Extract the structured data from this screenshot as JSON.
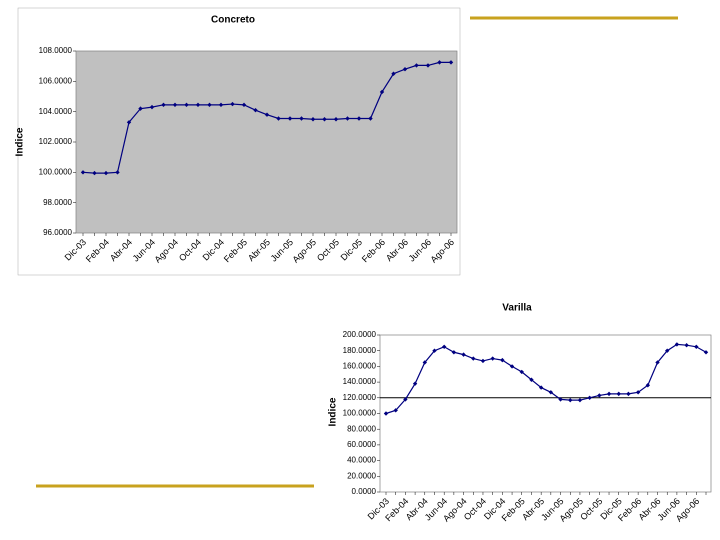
{
  "chart_data": [
    {
      "type": "line",
      "title": "Concreto",
      "y_label": "Indice",
      "categories": [
        "Dic-03",
        null,
        "Feb-04",
        null,
        "Abr-04",
        null,
        "Jun-04",
        null,
        "Ago-04",
        null,
        "Oct-04",
        null,
        "Dic-04",
        null,
        "Feb-05",
        null,
        "Abr-05",
        null,
        "Jun-05",
        null,
        "Ago-05",
        null,
        "Oct-05",
        null,
        "Dic-05",
        null,
        "Feb-06",
        null,
        "Abr-06",
        null,
        "Jun-06",
        null,
        "Ago-06"
      ],
      "series": [
        {
          "color": "#000080",
          "values": [
            100,
            99.95,
            99.95,
            100,
            103.3,
            104.2,
            104.3,
            104.45,
            104.45,
            104.45,
            104.45,
            104.45,
            104.45,
            104.5,
            104.45,
            104.1,
            103.8,
            103.55,
            103.55,
            103.55,
            103.5,
            103.5,
            103.5,
            103.55,
            103.55,
            103.55,
            105.3,
            106.5,
            106.8,
            107.05,
            107.05,
            107.25,
            107.25
          ]
        }
      ],
      "ylim": [
        96,
        108
      ],
      "yticks": [
        {
          "value": 96,
          "label": "96.0000"
        },
        {
          "value": 98,
          "label": "98.0000"
        },
        {
          "value": 100,
          "label": "100.0000"
        },
        {
          "value": 102,
          "label": "102.0000"
        },
        {
          "value": 104,
          "label": "104.0000"
        },
        {
          "value": 106,
          "label": "106.0000"
        },
        {
          "value": 108,
          "label": "108.0000"
        }
      ],
      "plot_background": "#c0c0c0"
    },
    {
      "type": "line",
      "title": "Varilla",
      "y_label": "Indice",
      "categories": [
        "Dic-03",
        null,
        "Feb-04",
        null,
        "Abr-04",
        null,
        "Jun-04",
        null,
        "Ago-04",
        null,
        "Oct-04",
        null,
        "Dic-04",
        null,
        "Feb-05",
        null,
        "Abr-05",
        null,
        "Jun-05",
        null,
        "Ago-05",
        null,
        "Oct-05",
        null,
        "Dic-05",
        null,
        "Feb-06",
        null,
        "Abr-06",
        null,
        "Jun-06",
        null,
        "Ago-06",
        null
      ],
      "series": [
        {
          "color": "#000080",
          "values": [
            100,
            104,
            118,
            138,
            165,
            180,
            185,
            178,
            175,
            170,
            167,
            170,
            168,
            160,
            153,
            143,
            133,
            127,
            118,
            117,
            117,
            120,
            123,
            125,
            125,
            125,
            127,
            136,
            165,
            180,
            188,
            187,
            185,
            178
          ]
        }
      ],
      "ylim": [
        0,
        200
      ],
      "yticks": [
        {
          "value": 0,
          "label": "0.0000"
        },
        {
          "value": 20,
          "label": "20.0000"
        },
        {
          "value": 40,
          "label": "40.0000"
        },
        {
          "value": 60,
          "label": "60.0000"
        },
        {
          "value": 80,
          "label": "80.0000"
        },
        {
          "value": 100,
          "label": "100.0000"
        },
        {
          "value": 120,
          "label": "120.0000"
        },
        {
          "value": 140,
          "label": "140.0000"
        },
        {
          "value": 160,
          "label": "160.0000"
        },
        {
          "value": 180,
          "label": "180.0000"
        },
        {
          "value": 200,
          "label": "200.0000"
        }
      ],
      "reference_line": 120,
      "plot_background": "#ffffff"
    }
  ]
}
